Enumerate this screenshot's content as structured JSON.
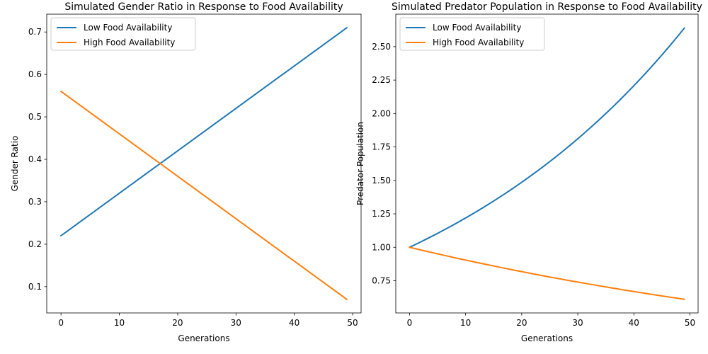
{
  "colors": {
    "low": "#1f77b4",
    "high": "#ff7f0e"
  },
  "chart_data": [
    {
      "type": "line",
      "title": "Simulated Gender Ratio in Response to Food Availability",
      "xlabel": "Generations",
      "ylabel": "Gender Ratio",
      "xlim": [
        -2.45,
        51.45
      ],
      "ylim": [
        0.038,
        0.742
      ],
      "xticks": [
        0,
        10,
        20,
        30,
        40,
        50
      ],
      "yticks": [
        0.1,
        0.2,
        0.3,
        0.4,
        0.5,
        0.6,
        0.7
      ],
      "ytick_labels": [
        "0.1",
        "0.2",
        "0.3",
        "0.4",
        "0.5",
        "0.6",
        "0.7"
      ],
      "legend": "upper-left",
      "grid": false,
      "series": [
        {
          "name": "Low Food Availability",
          "color_key": "low",
          "kind": "linear",
          "start": 0.22,
          "end": 0.71,
          "x": [
            0,
            49
          ]
        },
        {
          "name": "High Food Availability",
          "color_key": "high",
          "kind": "linear",
          "start": 0.56,
          "end": 0.07,
          "x": [
            0,
            49
          ]
        }
      ]
    },
    {
      "type": "line",
      "title": "Simulated Predator Population in Response to Food Availability",
      "xlabel": "Generations",
      "ylabel": "Predator Population",
      "xlim": [
        -2.45,
        51.45
      ],
      "ylim": [
        0.509,
        2.743
      ],
      "xticks": [
        0,
        10,
        20,
        30,
        40,
        50
      ],
      "yticks": [
        0.75,
        1.0,
        1.25,
        1.5,
        1.75,
        2.0,
        2.25,
        2.5
      ],
      "ytick_labels": [
        "0.75",
        "1.00",
        "1.25",
        "1.50",
        "1.75",
        "2.00",
        "2.25",
        "2.50"
      ],
      "legend": "upper-left",
      "grid": false,
      "series": [
        {
          "name": "Low Food Availability",
          "color_key": "low",
          "kind": "growth",
          "start": 1.0,
          "rate": 1.02,
          "x": [
            0,
            49
          ]
        },
        {
          "name": "High Food Availability",
          "color_key": "high",
          "kind": "growth",
          "start": 1.0,
          "rate": 0.99,
          "x": [
            0,
            49
          ]
        }
      ]
    }
  ]
}
